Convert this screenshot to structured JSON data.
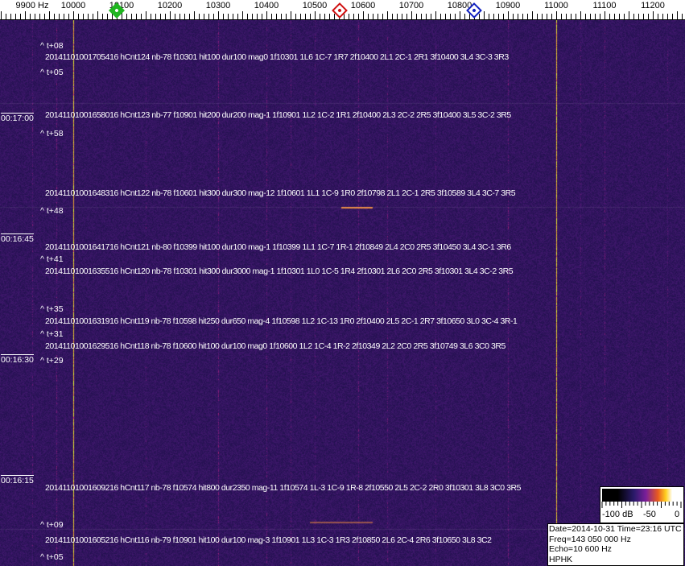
{
  "axis": {
    "unit_label": "9900 Hz",
    "ticks": [
      "10000",
      "10100",
      "10200",
      "10300",
      "10400",
      "10500",
      "10600",
      "10700",
      "10800",
      "10900",
      "11000",
      "11100",
      "11200"
    ]
  },
  "markers": [
    {
      "name": "green",
      "color": "#1fb51f",
      "freq_hz": 10100
    },
    {
      "name": "red",
      "color": "#d01010",
      "freq_hz": 10562
    },
    {
      "name": "blue",
      "color": "#1020c0",
      "freq_hz": 10840
    }
  ],
  "colors": {
    "background": "#24166a",
    "trace": "#ff9030"
  },
  "clock_labels": [
    "00:17:00",
    "00:16:45",
    "00:16:30",
    "00:16:15"
  ],
  "time_offsets": [
    "^ t+08",
    "^ t+05",
    "^ t+58",
    "^ t+48",
    "^ t+41",
    "^ t+35",
    "^ t+31",
    "^ t+29",
    "^ t+09",
    "^ t+05"
  ],
  "detections": [
    "20141101001705416 hCnt124 nb-78 f10301 hit100 dur100 mag0 1f10301 1L6 1C-7 1R7 2f10400 2L1 2C-1 2R1 3f10400 3L4 3C-3 3R3",
    "20141101001658016 hCnt123 nb-77 f10901 hit200 dur200 mag-1 1f10901 1L2 1C-2 1R1 2f10400 2L3 2C-2 2R5 3f10400 3L5 3C-2 3R5",
    "20141101001648316 hCnt122 nb-78 f10601 hit300 dur300 mag-12 1f10601 1L1 1C-9 1R0 2f10798 2L1 2C-1 2R5 3f10589 3L4 3C-7 3R5",
    "20141101001641716 hCnt121 nb-80 f10399 hit100 dur100 mag-1 1f10399 1L1 1C-7 1R-1 2f10849 2L4 2C0 2R5 3f10450 3L4 3C-1 3R6",
    "20141101001635516 hCnt120 nb-78 f10301 hit300 dur3000 mag-1 1f10301 1L0 1C-5 1R4 2f10301 2L6 2C0 2R5 3f10301 3L4 3C-2 3R5",
    "20141101001631916 hCnt119 nb-78 f10598 hit250 dur650 mag-4 1f10598 1L2 1C-13 1R0 2f10400 2L5 2C-1 2R7 3f10650 3L0 3C-4 3R-1",
    "20141101001629516 hCnt118 nb-78 f10600 hit100 dur100 mag0 1f10600 1L2 1C-4 1R-2 2f10349 2L2 2C0 2R5 3f10749 3L6 3C0 3R5",
    "20141101001609216 hCnt117 nb-78 f10574 hit800 dur2350 mag-11 1f10574 1L-3 1C-9 1R-8 2f10550 2L5 2C-2 2R0 3f10301 3L8 3C0 3R5",
    "20141101001605216 hCnt116 nb-79 f10901 hit100 dur100 mag-3 1f10901 1L3 1C-3 1R3 2f10850 2L6 2C-4 2R6 3f10650 3L8 3C2"
  ],
  "scale": {
    "labels": [
      "-100 dB",
      "-50",
      "0"
    ]
  },
  "info": {
    "date": "Date=2014-10-31 Time=23:16 UTC",
    "freq": "Freq=143 050 000 Hz",
    "echo": "Echo=10 600 Hz",
    "station": "HPHK"
  }
}
